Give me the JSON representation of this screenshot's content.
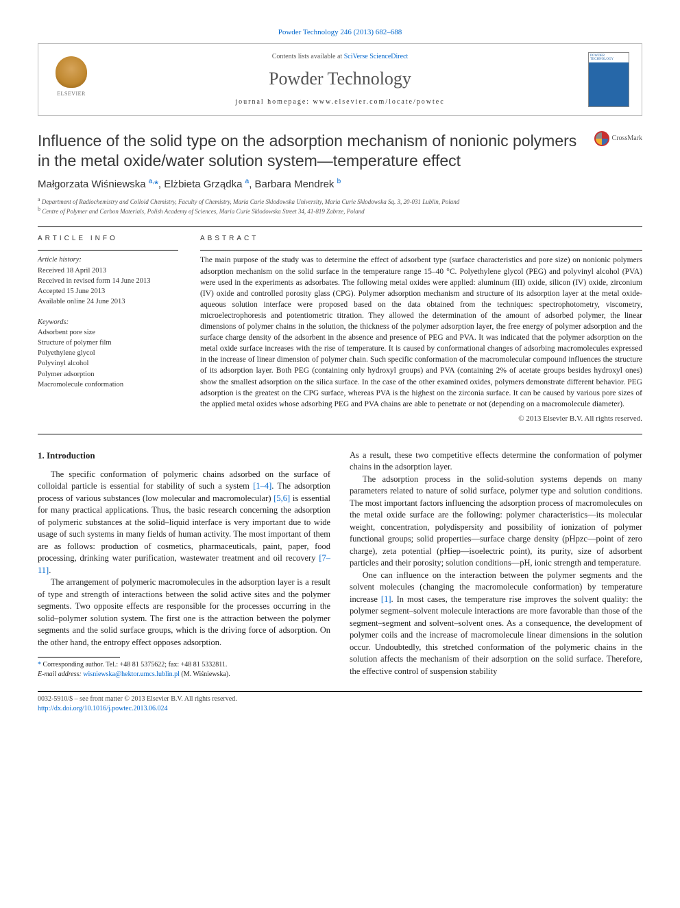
{
  "top_citation": "Powder Technology 246 (2013) 682–688",
  "header": {
    "contents_prefix": "Contents lists available at ",
    "contents_link": "SciVerse ScienceDirect",
    "journal": "Powder Technology",
    "homepage_prefix": "journal homepage: ",
    "homepage_url": "www.elsevier.com/locate/powtec",
    "publisher_label": "ELSEVIER",
    "cover_label": "POWDER TECHNOLOGY"
  },
  "title": "Influence of the solid type on the adsorption mechanism of nonionic polymers in the metal oxide/water solution system—temperature effect",
  "crossmark": "CrossMark",
  "authors_html": "Małgorzata Wiśniewska <sup>a,</sup><span class='star'>*</span>, Elżbieta Grządka <sup>a</sup>, Barbara Mendrek <sup>b</sup>",
  "affiliations": {
    "a": "Department of Radiochemistry and Colloid Chemistry, Faculty of Chemistry, Maria Curie Sklodowska University, Maria Curie Sklodowska Sq. 3, 20-031 Lublin, Poland",
    "b": "Centre of Polymer and Carbon Materials, Polish Academy of Sciences, Maria Curie Sklodowska Street 34, 41-819 Zabrze, Poland"
  },
  "article_info_label": "article info",
  "abstract_label": "abstract",
  "history": {
    "label": "Article history:",
    "received": "Received 18 April 2013",
    "revised": "Received in revised form 14 June 2013",
    "accepted": "Accepted 15 June 2013",
    "online": "Available online 24 June 2013"
  },
  "keywords": {
    "label": "Keywords:",
    "items": [
      "Adsorbent pore size",
      "Structure of polymer film",
      "Polyethylene glycol",
      "Polyvinyl alcohol",
      "Polymer adsorption",
      "Macromolecule conformation"
    ]
  },
  "abstract": "The main purpose of the study was to determine the effect of adsorbent type (surface characteristics and pore size) on nonionic polymers adsorption mechanism on the solid surface in the temperature range 15–40 °C. Polyethylene glycol (PEG) and polyvinyl alcohol (PVA) were used in the experiments as adsorbates. The following metal oxides were applied: aluminum (III) oxide, silicon (IV) oxide, zirconium (IV) oxide and controlled porosity glass (CPG). Polymer adsorption mechanism and structure of its adsorption layer at the metal oxide-aqueous solution interface were proposed based on the data obtained from the techniques: spectrophotometry, viscometry, microelectrophoresis and potentiometric titration. They allowed the determination of the amount of adsorbed polymer, the linear dimensions of polymer chains in the solution, the thickness of the polymer adsorption layer, the free energy of polymer adsorption and the surface charge density of the adsorbent in the absence and presence of PEG and PVA. It was indicated that the polymer adsorption on the metal oxide surface increases with the rise of temperature. It is caused by conformational changes of adsorbing macromolecules expressed in the increase of linear dimension of polymer chain. Such specific conformation of the macromolecular compound influences the structure of its adsorption layer. Both PEG (containing only hydroxyl groups) and PVA (containing 2% of acetate groups besides hydroxyl ones) show the smallest adsorption on the silica surface. In the case of the other examined oxides, polymers demonstrate different behavior. PEG adsorption is the greatest on the CPG surface, whereas PVA is the highest on the zirconia surface. It can be caused by various pore sizes of the applied metal oxides whose adsorbing PEG and PVA chains are able to penetrate or not (depending on a macromolecule diameter).",
  "copyright": "© 2013 Elsevier B.V. All rights reserved.",
  "section1_heading": "1. Introduction",
  "paragraphs": {
    "p1_a": "The specific conformation of polymeric chains adsorbed on the surface of colloidal particle is essential for stability of such a system ",
    "p1_ref1": "[1–4]",
    "p1_b": ". The adsorption process of various substances (low molecular and macromolecular) ",
    "p1_ref2": "[5,6]",
    "p1_c": " is essential for many practical applications. Thus, the basic research concerning the adsorption of polymeric substances at the solid–liquid interface is very important due to wide usage of such systems in many fields of human activity. The most important of them are as follows: production of cosmetics, pharmaceuticals, paint, paper, food processing, drinking water purification, wastewater treatment and oil recovery ",
    "p1_ref3": "[7–11]",
    "p1_d": ".",
    "p2": "The arrangement of polymeric macromolecules in the adsorption layer is a result of type and strength of interactions between the solid active sites and the polymer segments. Two opposite effects are responsible for the processes occurring in the solid–polymer solution system. The first one is the attraction between the polymer segments and the solid surface groups, which is the driving force of adsorption. On the other hand, the entropy effect opposes adsorption.",
    "p3": "As a result, these two competitive effects determine the conformation of polymer chains in the adsorption layer.",
    "p4": "The adsorption process in the solid-solution systems depends on many parameters related to nature of solid surface, polymer type and solution conditions. The most important factors influencing the adsorption process of macromolecules on the metal oxide surface are the following: polymer characteristics—its molecular weight, concentration, polydispersity and possibility of ionization of polymer functional groups; solid properties—surface charge density (pHpzc—point of zero charge), zeta potential (pHiep—isoelectric point), its purity, size of adsorbent particles and their porosity; solution conditions—pH, ionic strength and temperature.",
    "p5_a": "One can influence on the interaction between the polymer segments and the solvent molecules (changing the macromolecule conformation) by temperature increase ",
    "p5_ref": "[1]",
    "p5_b": ". In most cases, the temperature rise improves the solvent quality: the polymer segment–solvent molecule interactions are more favorable than those of the segment–segment and solvent–solvent ones. As a consequence, the development of polymer coils and the increase of macromolecule linear dimensions in the solution occur. Undoubtedly, this stretched conformation of the polymeric chains in the solution affects the mechanism of their adsorption on the solid surface. Therefore, the effective control of suspension stability"
  },
  "footnote": {
    "corr": "Corresponding author. Tel.: +48 81 5375622; fax: +48 81 5332811.",
    "email_label": "E-mail address:",
    "email": "wisniewska@hektor.umcs.lublin.pl",
    "email_who": "(M. Wiśniewska)."
  },
  "footer": {
    "line1": "0032-5910/$ – see front matter © 2013 Elsevier B.V. All rights reserved.",
    "doi": "http://dx.doi.org/10.1016/j.powtec.2013.06.024"
  },
  "colors": {
    "link": "#0066cc",
    "text": "#222222",
    "heading_gray": "#555555",
    "rule": "#000000",
    "border_box": "#bbbbbb"
  },
  "typography": {
    "body_pt": 12.5,
    "abstract_pt": 11.5,
    "title_pt": 23,
    "journal_pt": 26,
    "authors_pt": 15,
    "meta_small_pt": 10.5
  }
}
